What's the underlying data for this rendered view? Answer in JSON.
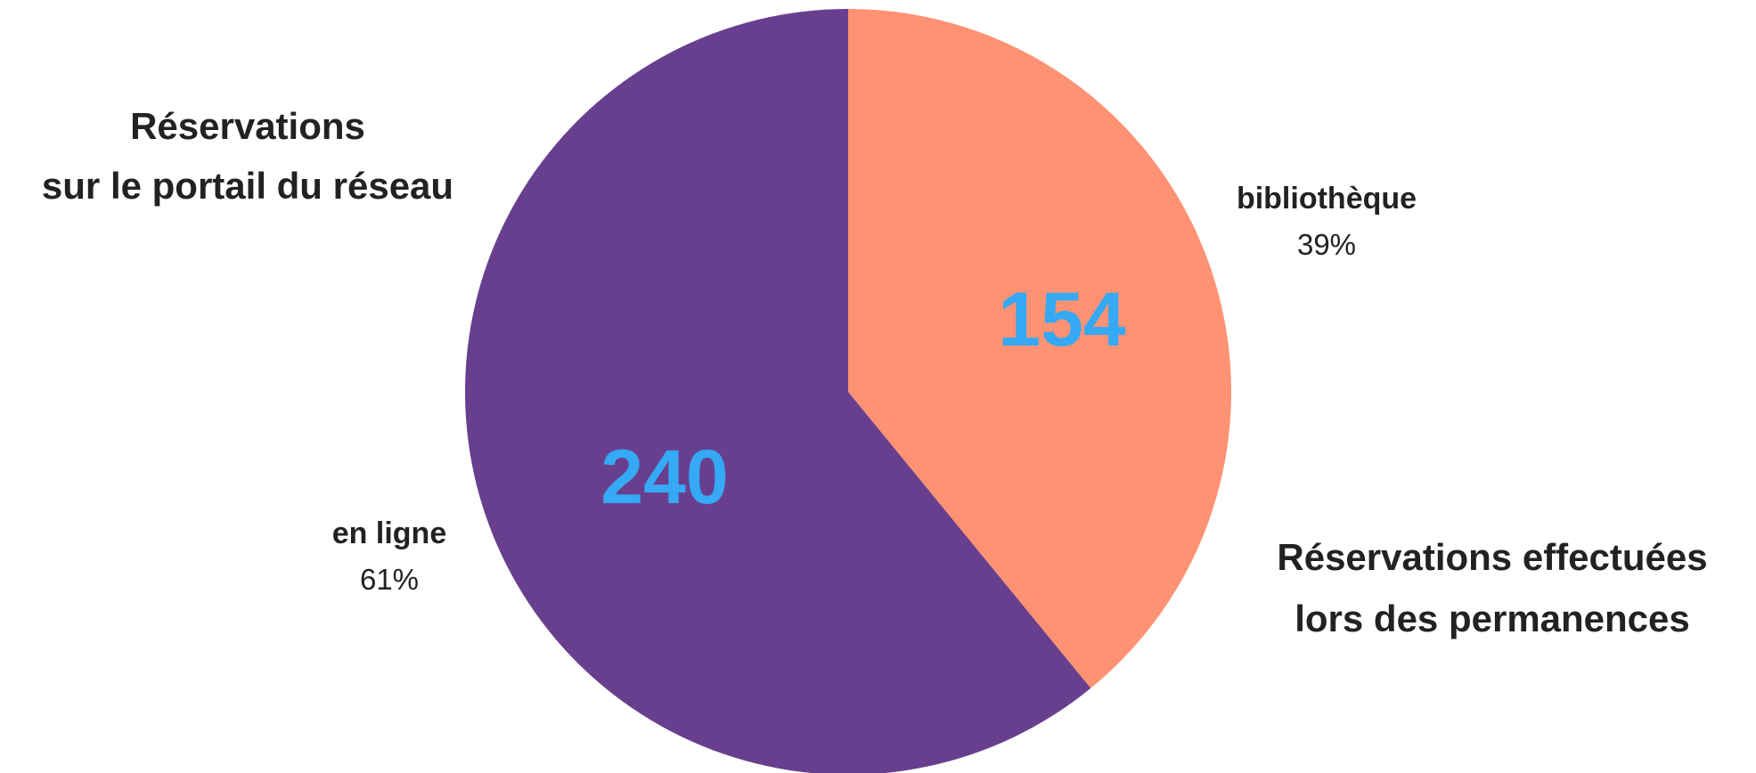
{
  "chart_data": {
    "type": "pie",
    "slices": [
      {
        "label": "bibliothèque",
        "value": 154,
        "value_label": "154",
        "percent": 39,
        "percent_label": "39%",
        "color": "#ff9273",
        "annotation": [
          "Réservations effectuées",
          "lors des permanences"
        ]
      },
      {
        "label": "en ligne",
        "value": 240,
        "value_label": "240",
        "percent": 61,
        "percent_label": "61%",
        "color": "#683f8e",
        "annotation": [
          "Réservations",
          "sur le portail du réseau"
        ]
      }
    ],
    "start_angle": "12 o'clock",
    "direction": "clockwise",
    "value_label_color": "#35a9f4",
    "legend": "none"
  }
}
